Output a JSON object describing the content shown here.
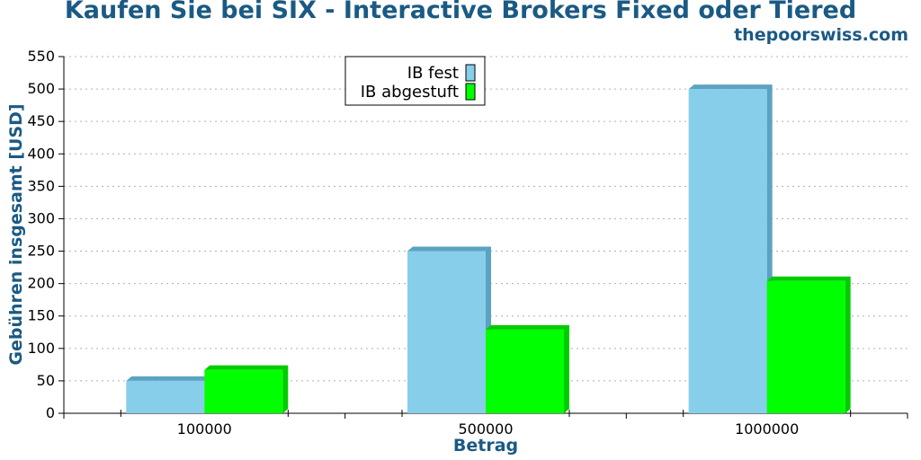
{
  "page": {
    "title": "Kaufen Sie bei SIX - Interactive Brokers Fixed oder Tiered",
    "credit": "thepoorswiss.com"
  },
  "colors": {
    "title": "#1a5a84",
    "fixed_face": "#87ceeb",
    "fixed_shade": "#5ba3c2",
    "tiered_face": "#00ff00",
    "tiered_shade": "#00cc00",
    "grid": "#b0b0b0"
  },
  "chart_data": {
    "type": "bar",
    "title": "Kaufen Sie bei SIX - Interactive Brokers Fixed oder Tiered",
    "xlabel": "Betrag",
    "ylabel": "Gebühren insgesamt [USD]",
    "categories": [
      "100000",
      "500000",
      "1000000"
    ],
    "series": [
      {
        "name": "IB fest",
        "values": [
          50,
          250,
          500
        ]
      },
      {
        "name": "IB abgestuft",
        "values": [
          67,
          129,
          204
        ]
      }
    ],
    "ylim": [
      0,
      550
    ],
    "yticks": [
      0,
      50,
      100,
      150,
      200,
      250,
      300,
      350,
      400,
      450,
      500,
      550
    ],
    "grid": "horizontal dotted",
    "legend_position": "top-center"
  }
}
